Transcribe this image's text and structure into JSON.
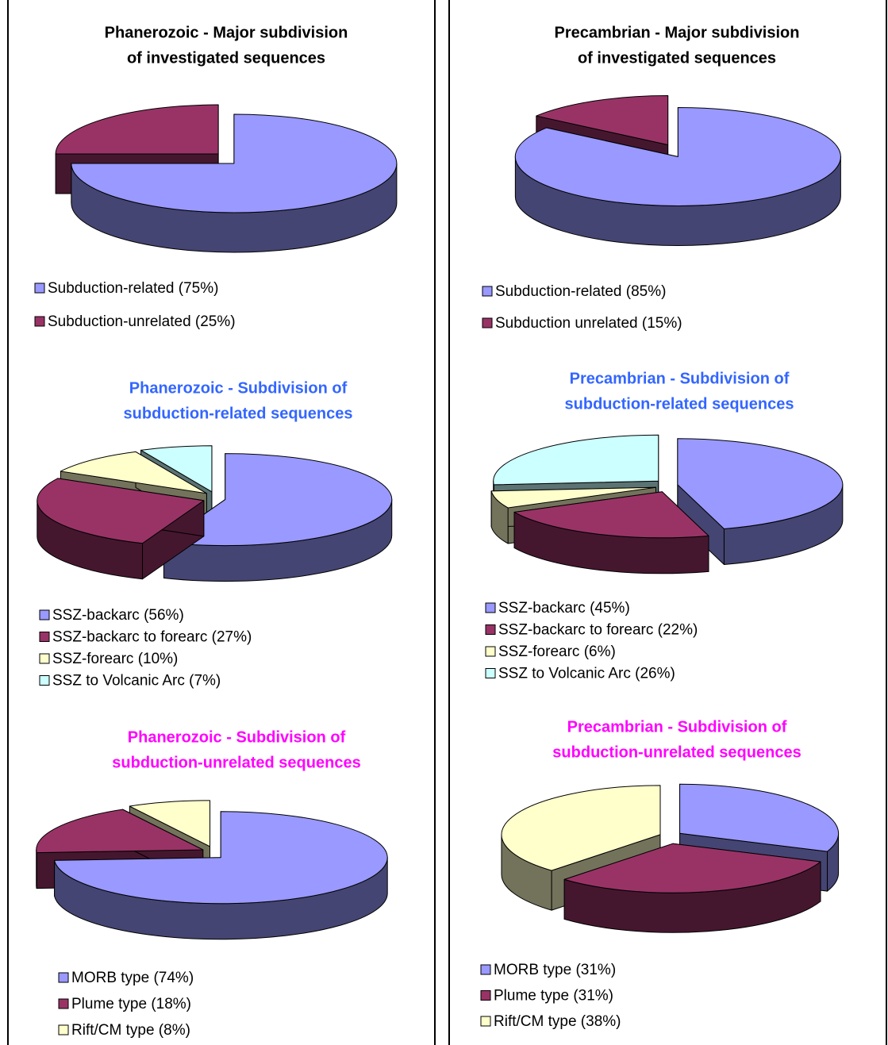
{
  "chart_data": [
    {
      "type": "pie",
      "title": [
        "Phanerozoic - Major subdivision",
        "of investigated sequences"
      ],
      "title_color": "#000000",
      "categories": [
        "Subduction-related (75%)",
        "Subduction-unrelated (25%)"
      ],
      "values": [
        75,
        25
      ],
      "colors": [
        "#9999ff",
        "#993366"
      ]
    },
    {
      "type": "pie",
      "title": [
        "Phanerozoic - Subdivision of",
        "subduction-related sequences"
      ],
      "title_color": "#3366ff",
      "categories": [
        "SSZ-backarc (56%)",
        "SSZ-backarc to forearc (27%)",
        "SSZ-forearc (10%)",
        "SSZ to Volcanic Arc (7%)"
      ],
      "values": [
        56,
        27,
        10,
        7
      ],
      "colors": [
        "#9999ff",
        "#993366",
        "#ffffcc",
        "#ccffff"
      ]
    },
    {
      "type": "pie",
      "title": [
        "Phanerozoic - Subdivision of",
        "subduction-unrelated sequences"
      ],
      "title_color": "#ff00ff",
      "categories": [
        "MORB type (74%)",
        "Plume type (18%)",
        "Rift/CM type (8%)"
      ],
      "values": [
        74,
        18,
        8
      ],
      "colors": [
        "#9999ff",
        "#993366",
        "#ffffcc"
      ]
    },
    {
      "type": "pie",
      "title": [
        "Precambrian - Major subdivision",
        "of investigated sequences"
      ],
      "title_color": "#000000",
      "categories": [
        "Subduction-related (85%)",
        "Subduction unrelated (15%)"
      ],
      "values": [
        85,
        15
      ],
      "colors": [
        "#9999ff",
        "#993366"
      ]
    },
    {
      "type": "pie",
      "title": [
        "Precambrian - Subdivision of",
        "subduction-related sequences"
      ],
      "title_color": "#3366ff",
      "categories": [
        "SSZ-backarc (45%)",
        "SSZ-backarc to forearc (22%)",
        "SSZ-forearc (6%)",
        "SSZ to Volcanic Arc (26%)"
      ],
      "values": [
        45,
        22,
        6,
        26
      ],
      "colors": [
        "#9999ff",
        "#993366",
        "#ffffcc",
        "#ccffff"
      ]
    },
    {
      "type": "pie",
      "title": [
        "Precambrian - Subdivision of",
        "subduction-unrelated sequences"
      ],
      "title_color": "#ff00ff",
      "categories": [
        "MORB type (31%)",
        "Plume type (31%)",
        "Rift/CM type (38%)"
      ],
      "values": [
        31,
        31,
        38
      ],
      "colors": [
        "#9999ff",
        "#993366",
        "#ffffcc"
      ]
    }
  ]
}
